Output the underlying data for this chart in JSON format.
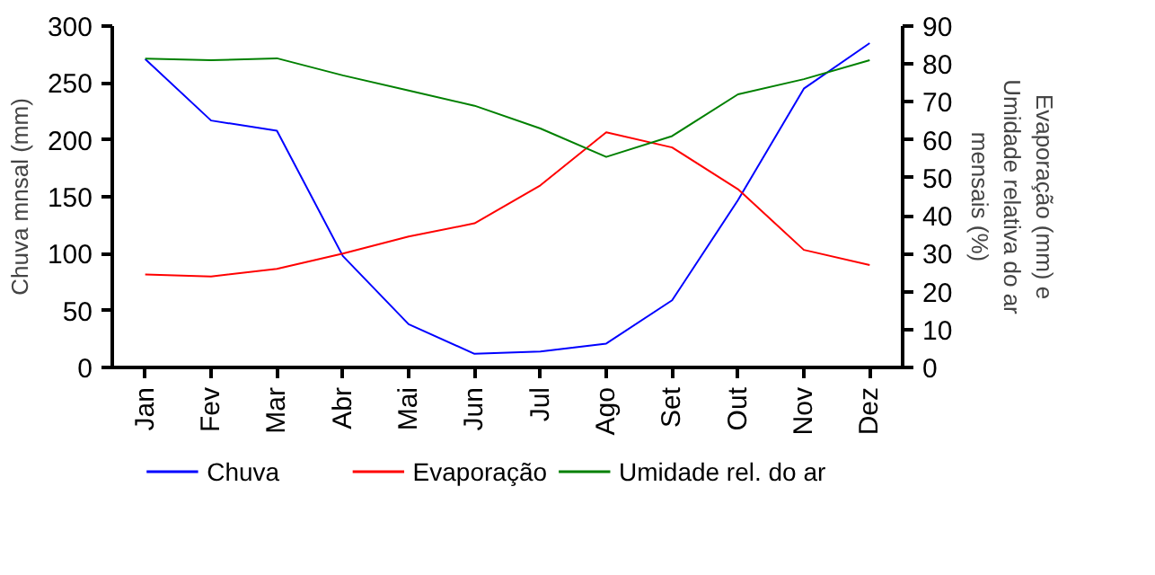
{
  "chart_data": {
    "type": "line",
    "categories": [
      "Jan",
      "Fev",
      "Mar",
      "Abr",
      "Mai",
      "Jun",
      "Jul",
      "Ago",
      "Set",
      "Out",
      "Nov",
      "Dez"
    ],
    "ylabel": "Chuva mnsal (mm)",
    "y2label": "Evaporação (mm) e\nUmidade relativa do ar\nmensais (%)",
    "ylim": [
      0,
      300
    ],
    "yticks": [
      0,
      50,
      100,
      150,
      200,
      250,
      300
    ],
    "y2lim": [
      0,
      90
    ],
    "y2ticks": [
      0,
      10,
      20,
      30,
      40,
      50,
      60,
      70,
      80,
      90
    ],
    "grid": false,
    "legend": "bottom",
    "line_style": "solid",
    "marker": "none",
    "series": [
      {
        "name": "Chuva",
        "color": "#0000ff",
        "values": [
          271,
          217,
          208,
          98,
          38,
          12,
          14,
          21,
          59,
          147,
          245,
          285
        ]
      },
      {
        "name": "Evaporação",
        "color": "#ff0000",
        "axis": "y2",
        "values": [
          24.5,
          24,
          26,
          30,
          34.5,
          38,
          48,
          62,
          58,
          47,
          31,
          27
        ]
      },
      {
        "name": "Umidade rel. do ar",
        "color": "#008000",
        "axis": "y2",
        "values": [
          81.4,
          81,
          81.5,
          77,
          73,
          69,
          63,
          55.5,
          61,
          72,
          76,
          81
        ]
      }
    ]
  }
}
